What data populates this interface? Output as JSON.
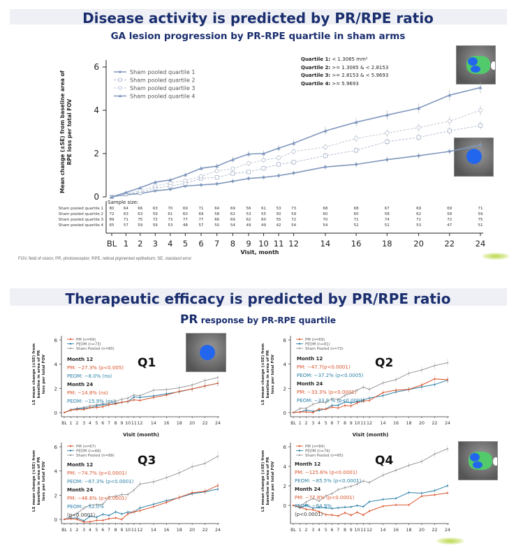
{
  "slide1": {
    "title": "Disease activity is predicted by PR/RPE ratio",
    "subtitle": "GA lesion progression by PR-RPE quartile in sham arms",
    "quartile_definitions": [
      {
        "label": "Quartile 1:",
        "value": "< 1.3085 mm²"
      },
      {
        "label": "Quartile 2:",
        "value": ">= 1.3085 & < 2.8153"
      },
      {
        "label": "Quartile 3:",
        "value": ">= 2.8153 & < 5.9693"
      },
      {
        "label": "Quartile 4:",
        "value": ">= 5.9693"
      }
    ],
    "footnote": "FOV, field of vision; PR, photoreceptor; RPE, retinal pigmented epithelium; SE, standard error",
    "sample_size_label": "Sample size:"
  },
  "slide2": {
    "title": "Therapeutic efficacy is predicted by PR/RPE ratio",
    "subtitle_big": "PR",
    "subtitle_rest": " response by PR-RPE quartile"
  },
  "chart_data": [
    {
      "id": "main",
      "type": "line",
      "title": "GA lesion progression by PR-RPE quartile in sham arms",
      "xlabel": "Visit, month",
      "ylabel": "Mean change (±SE) from baseline area of RPE loss per total FOV",
      "ylim": [
        0,
        6
      ],
      "yticks": [
        0,
        2,
        4,
        6
      ],
      "x": [
        0,
        1,
        2,
        3,
        4,
        5,
        6,
        7,
        8,
        9,
        10,
        11,
        12,
        14,
        16,
        18,
        20,
        22,
        24
      ],
      "xtick_labels": [
        "BL",
        "1",
        "2",
        "3",
        "4",
        "5",
        "6",
        "7",
        "8",
        "9",
        "10",
        "11",
        "12",
        "14",
        "16",
        "18",
        "20",
        "22",
        "24"
      ],
      "legend_position": "top-left",
      "series": [
        {
          "name": "Sham pooled quartile 1",
          "color": "#7f97bd",
          "style": "solid",
          "marker": "diamond",
          "values": [
            0,
            0.1,
            0.15,
            0.28,
            0.35,
            0.5,
            0.55,
            0.6,
            0.72,
            0.85,
            0.9,
            0.98,
            1.1,
            1.38,
            1.5,
            1.72,
            1.9,
            2.1,
            2.4
          ],
          "sample_size": [
            80,
            64,
            66,
            63,
            70,
            69,
            71,
            64,
            69,
            56,
            61,
            53,
            73,
            68,
            68,
            67,
            69,
            69,
            71
          ]
        },
        {
          "name": "Sham pooled quartile 2",
          "color": "#a9b6cc",
          "style": "dashed",
          "marker": "square",
          "values": [
            0,
            0.12,
            0.2,
            0.4,
            0.5,
            0.62,
            0.85,
            0.9,
            1.08,
            1.15,
            1.32,
            1.5,
            1.6,
            1.9,
            2.15,
            2.55,
            2.75,
            3.05,
            3.3
          ],
          "sample_size": [
            72,
            63,
            63,
            59,
            61,
            60,
            69,
            58,
            62,
            53,
            55,
            50,
            59,
            60,
            60,
            58,
            62,
            58,
            59
          ]
        },
        {
          "name": "Sham pooled quartile 3",
          "color": "#b8c0cf",
          "style": "dashed",
          "marker": "circle",
          "values": [
            0,
            0.15,
            0.28,
            0.5,
            0.65,
            0.75,
            0.95,
            1.2,
            1.3,
            1.55,
            1.7,
            1.8,
            2.1,
            2.3,
            2.7,
            2.95,
            3.2,
            3.5,
            4.0
          ],
          "sample_size": [
            89,
            71,
            75,
            72,
            73,
            77,
            77,
            66,
            69,
            62,
            60,
            55,
            72,
            70,
            71,
            74,
            71,
            72,
            75
          ]
        },
        {
          "name": "Sham pooled quartile 4",
          "color": "#7f97bd",
          "style": "solid",
          "marker": "triangle",
          "values": [
            0,
            0.2,
            0.42,
            0.68,
            0.78,
            1.02,
            1.32,
            1.42,
            1.72,
            1.98,
            2.0,
            2.25,
            2.48,
            3.05,
            3.45,
            3.78,
            4.1,
            4.7,
            5.05
          ],
          "sample_size": [
            65,
            57,
            59,
            59,
            53,
            48,
            57,
            50,
            54,
            49,
            49,
            42,
            54,
            54,
            52,
            52,
            53,
            47,
            51
          ]
        }
      ]
    },
    {
      "id": "q1",
      "panel_label": "Q1",
      "type": "line",
      "xlabel": "Visit (month)",
      "ylabel": "LS mean change (±SE) from baseline in area of PR loss per total FOV",
      "ylim": [
        -0.5,
        6
      ],
      "yticks": [
        0,
        2,
        4,
        6
      ],
      "x": [
        0,
        1,
        2,
        3,
        4,
        5,
        6,
        7,
        8,
        9,
        10,
        11,
        12,
        14,
        16,
        18,
        20,
        22,
        24
      ],
      "xtick_labels": [
        "BL",
        "1",
        "2",
        "3",
        "4",
        "5",
        "6",
        "7",
        "8",
        "9",
        "10",
        "11",
        "12",
        "14",
        "16",
        "18",
        "20",
        "22",
        "24"
      ],
      "legend_position": "top-left",
      "series": [
        {
          "name": "PM (n=69)",
          "color": "#d9532b",
          "values": [
            0,
            0.2,
            0.25,
            0.25,
            0.4,
            0.42,
            0.48,
            0.65,
            0.72,
            0.85,
            0.92,
            1.05,
            1.0,
            1.25,
            1.45,
            1.75,
            1.95,
            2.2,
            2.42
          ]
        },
        {
          "name": "PEOM (n=73)",
          "color": "#2a7fa6",
          "values": [
            0,
            0.2,
            0.3,
            0.35,
            0.4,
            0.55,
            0.65,
            0.65,
            0.78,
            0.85,
            0.9,
            1.28,
            1.25,
            1.38,
            1.55,
            1.72,
            1.95,
            2.2,
            2.42
          ]
        },
        {
          "name": "Sham Pooled (n=80)",
          "color": "#9a9a9a",
          "values": [
            0,
            0.25,
            0.35,
            0.42,
            0.55,
            0.65,
            0.72,
            0.78,
            0.95,
            1.1,
            1.2,
            1.45,
            1.4,
            1.85,
            1.9,
            2.05,
            2.28,
            2.65,
            2.9
          ]
        }
      ],
      "annotations": {
        "m12_label": "Month 12",
        "m12_pm_label": "PM:",
        "m12_pm_value": "−27.3% (p<0.005)",
        "m12_pe_label": "PEOM:",
        "m12_pe_value": "−8.0% (ns)",
        "m24_label": "Month 24",
        "m24_pm_label": "PM:",
        "m24_pm_value": "−14.8% (ns)",
        "m24_pe_label": "PEOM:",
        "m24_pe_value": "−15.9% (ns)"
      }
    },
    {
      "id": "q2",
      "panel_label": "Q2",
      "type": "line",
      "xlabel": "Visit (month)",
      "ylabel": "LS mean change (±SE) from baseline in area of PR loss per total FOV",
      "ylim": [
        -0.5,
        6
      ],
      "yticks": [
        0,
        2,
        4,
        6
      ],
      "x": [
        0,
        1,
        2,
        3,
        4,
        5,
        6,
        7,
        8,
        9,
        10,
        11,
        12,
        14,
        16,
        18,
        20,
        22,
        24
      ],
      "xtick_labels": [
        "BL",
        "1",
        "2",
        "3",
        "4",
        "5",
        "6",
        "7",
        "8",
        "9",
        "10",
        "11",
        "12",
        "14",
        "16",
        "18",
        "20",
        "22",
        "24"
      ],
      "legend_position": "top-left",
      "series": [
        {
          "name": "PM (n=69)",
          "color": "#d9532b",
          "values": [
            0,
            0.05,
            0.05,
            0.0,
            0.3,
            0.28,
            0.45,
            0.38,
            0.58,
            0.55,
            0.8,
            0.95,
            1.0,
            1.65,
            1.85,
            1.92,
            2.28,
            2.78,
            2.72
          ]
        },
        {
          "name": "PEOM (n=81)",
          "color": "#2a7fa6",
          "values": [
            0,
            0.05,
            0.2,
            0.1,
            0.18,
            0.3,
            0.6,
            0.6,
            0.88,
            0.8,
            0.9,
            1.05,
            1.2,
            1.4,
            1.7,
            1.9,
            2.12,
            2.32,
            2.68
          ]
        },
        {
          "name": "Sham Pooled (n=72)",
          "color": "#9a9a9a",
          "values": [
            0,
            0.35,
            0.35,
            0.68,
            0.85,
            0.82,
            1.15,
            1.08,
            1.42,
            1.62,
            1.85,
            2.1,
            1.92,
            2.45,
            2.72,
            3.25,
            3.52,
            3.88,
            4.12
          ]
        }
      ],
      "annotations": {
        "m12_label": "Month 12",
        "m12_pm_label": "PM:",
        "m12_pm_value": "−47.7(p<0.0001)",
        "m12_pe_label": "PEOM:",
        "m12_pe_value": "−37.2% (p<0.0005)",
        "m24_label": "Month 24",
        "m24_pm_label": "PM:",
        "m24_pm_value": "−33.3% (p<0.0001)",
        "m24_pe_label": "PEOM:",
        "m24_pe_value": "−33.8 % (p<0.0001)"
      }
    },
    {
      "id": "q3",
      "panel_label": "Q3",
      "type": "line",
      "xlabel": "",
      "ylabel": "LS mean change (±SE) from baseline in area of PR loss per total FOV",
      "ylim": [
        -0.5,
        6
      ],
      "yticks": [
        0,
        2,
        4,
        6
      ],
      "x": [
        0,
        1,
        2,
        3,
        4,
        5,
        6,
        7,
        8,
        9,
        10,
        11,
        12,
        14,
        16,
        18,
        20,
        22,
        24
      ],
      "xtick_labels": [
        "BL",
        "1",
        "2",
        "3",
        "4",
        "5",
        "6",
        "7",
        "8",
        "9",
        "10",
        "11",
        "12",
        "14",
        "16",
        "18",
        "20",
        "22",
        "24"
      ],
      "legend_position": "top-left",
      "series": [
        {
          "name": "PM (n=67)",
          "color": "#d9532b",
          "values": [
            0,
            0.05,
            0.0,
            -0.22,
            -0.2,
            -0.08,
            -0.08,
            0.05,
            0.12,
            0.0,
            0.45,
            0.62,
            0.72,
            1.05,
            1.4,
            1.82,
            2.2,
            2.32,
            2.8
          ]
        },
        {
          "name": "PEOM (n=66)",
          "color": "#2a7fa6",
          "values": [
            0,
            0.1,
            0.12,
            -0.12,
            0.25,
            0.18,
            0.42,
            0.32,
            0.62,
            0.45,
            0.6,
            0.62,
            0.95,
            1.25,
            1.55,
            1.8,
            2.12,
            2.28,
            2.5
          ]
        },
        {
          "name": "Sham Pooled (n=89)",
          "color": "#9a9a9a",
          "values": [
            0,
            0.25,
            0.5,
            0.92,
            1.18,
            1.22,
            1.25,
            1.85,
            1.92,
            2.05,
            2.05,
            2.42,
            2.92,
            3.1,
            3.45,
            3.85,
            4.35,
            4.62,
            5.22
          ]
        }
      ],
      "annotations": {
        "m12_label": "Month 12",
        "m12_pm_label": "PM:",
        "m12_pm_value": "−74.7% (p<0.0001)",
        "m12_pe_label": "PEOM:",
        "m12_pe_value": "−67.3% (p<0.0001)",
        "m24_label": "Month 24",
        "m24_pm_label": "PM:",
        "m24_pm_value": "−46.6% (p<0.0001)",
        "m24_pe_label": "PEOM:",
        "m24_pe_value": "−52.0%",
        "m24_pe_extra": "(p<0.0001)"
      }
    },
    {
      "id": "q4",
      "panel_label": "Q4",
      "type": "line",
      "xlabel": "",
      "ylabel": "LS mean change (±SE) from baseline in area of PR loss per total FOV",
      "ylim": [
        -1.5,
        6
      ],
      "yticks": [
        0,
        2,
        4,
        6
      ],
      "x": [
        0,
        1,
        2,
        3,
        4,
        5,
        6,
        7,
        8,
        9,
        10,
        11,
        12,
        14,
        16,
        18,
        20,
        22,
        24
      ],
      "xtick_labels": [
        "BL",
        "1",
        "2",
        "3",
        "4",
        "5",
        "6",
        "7",
        "8",
        "9",
        "10",
        "11",
        "12",
        "14",
        "16",
        "18",
        "20",
        "22",
        "24"
      ],
      "legend_position": "top-left",
      "series": [
        {
          "name": "PM (n=84)",
          "color": "#d9532b",
          "values": [
            0,
            -0.2,
            -0.4,
            -0.45,
            -0.65,
            -0.95,
            -0.98,
            -1.08,
            -0.75,
            -1.0,
            -0.7,
            -0.98,
            -0.58,
            -0.08,
            0.05,
            0.05,
            0.95,
            1.08,
            1.28
          ]
        },
        {
          "name": "PEOM (n=74)",
          "color": "#2a7fa6",
          "values": [
            0,
            -0.25,
            0.05,
            -0.28,
            -0.22,
            -0.25,
            -0.32,
            -0.25,
            -0.18,
            -0.15,
            -0.02,
            -0.12,
            0.38,
            0.62,
            0.72,
            1.32,
            1.25,
            1.52,
            2.02
          ]
        },
        {
          "name": "Sham Pooled (n=65)",
          "color": "#9a9a9a",
          "values": [
            0,
            -0.1,
            0.35,
            0.7,
            0.45,
            0.98,
            1.2,
            1.62,
            1.82,
            1.95,
            2.18,
            2.5,
            2.35,
            3.1,
            3.6,
            4.1,
            4.5,
            5.25,
            5.8
          ]
        }
      ],
      "annotations": {
        "m12_label": "Month 12",
        "m12_pm_label": "PM:",
        "m12_pm_value": "−125.6% (p<0.0001)",
        "m12_pe_label": "PEOM:",
        "m12_pe_value": "−85.5% (p<0.0001)",
        "m24_label": "Month 24",
        "m24_pm_label": "PM:",
        "m24_pm_value": "−77.8% (p<0.0001)",
        "m24_pe_label": "PEOM:",
        "m24_pe_value": "−64.9%",
        "m24_pe_extra": "(p<0.0001)"
      }
    }
  ]
}
